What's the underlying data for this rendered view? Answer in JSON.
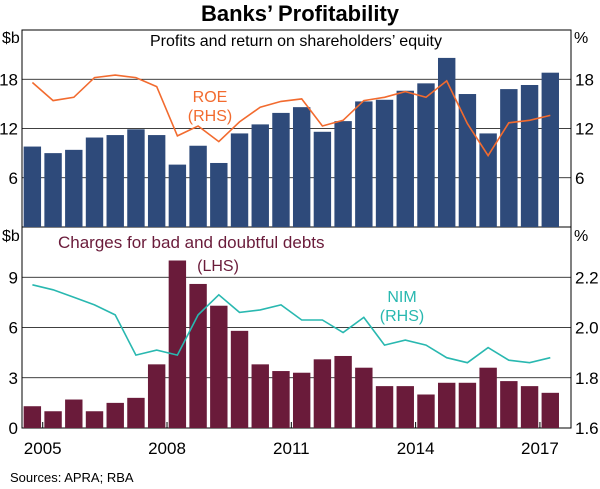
{
  "title": "Banks’ Profitability",
  "source": "Sources: APRA; RBA",
  "colors": {
    "bar_top": "#2e4a7a",
    "bar_bottom": "#6a1b3a",
    "roe": "#f26b2f",
    "nim": "#29b8b0",
    "grid": "#000000",
    "text": "#000000"
  },
  "chart_data": [
    {
      "type": "bar",
      "panel": "top",
      "title": "Profits and return on shareholders’ equity",
      "ylabel_left": "$b",
      "ylabel_right": "%",
      "ylim": [
        0,
        24
      ],
      "yticks": [
        6,
        12,
        18
      ],
      "x_start": 2004.75,
      "x_step": 0.5,
      "series": [
        {
          "name": "Profits",
          "axis": "left",
          "values": [
            9.8,
            9.0,
            9.4,
            10.9,
            11.2,
            11.9,
            11.2,
            7.6,
            9.9,
            7.8,
            11.4,
            12.5,
            13.9,
            14.6,
            11.6,
            12.9,
            15.3,
            15.5,
            16.6,
            17.5,
            20.6,
            16.2,
            11.4,
            16.8,
            17.3,
            18.8
          ]
        },
        {
          "name": "ROE",
          "label_line1": "ROE",
          "label_line2": "(RHS)",
          "axis": "right",
          "type": "line",
          "x": [
            2004.75,
            2005.25,
            2005.75,
            2006.25,
            2006.75,
            2007.25,
            2007.75,
            2008.25,
            2008.75,
            2009.25,
            2009.75,
            2010.25,
            2010.75,
            2011.25,
            2011.75,
            2012.25,
            2012.75,
            2013.25,
            2013.75,
            2014.25,
            2014.75,
            2015.25,
            2015.75,
            2016.25,
            2016.75,
            2017.25
          ],
          "values": [
            17.6,
            15.4,
            15.8,
            18.2,
            18.5,
            18.2,
            17.1,
            11.1,
            12.3,
            10.4,
            12.8,
            14.6,
            15.3,
            15.6,
            12.3,
            13.0,
            15.4,
            15.8,
            16.5,
            15.8,
            17.8,
            12.6,
            8.7,
            12.7,
            13.0,
            13.6
          ]
        }
      ]
    },
    {
      "type": "bar",
      "panel": "bottom",
      "title": "Charges for bad and doubtful debts",
      "bar_label": "(LHS)",
      "ylabel_left": "$b",
      "ylabel_right": "%",
      "ylim_left": [
        0,
        12
      ],
      "yticks_left": [
        3,
        6,
        9
      ],
      "ylim_right": [
        1.6,
        2.4
      ],
      "yticks_right": [
        "1.6",
        "1.8",
        "2.0",
        "2.2"
      ],
      "xticks": [
        "2005",
        "2008",
        "2011",
        "2014",
        "2017"
      ],
      "xtick_values": [
        2005,
        2008,
        2011,
        2014,
        2017
      ],
      "x_start": 2004.75,
      "x_step": 0.5,
      "series": [
        {
          "name": "Charges for bad and doubtful debts",
          "axis": "left",
          "values": [
            1.3,
            1.0,
            1.7,
            1.0,
            1.5,
            1.8,
            3.8,
            10.0,
            8.6,
            7.3,
            5.8,
            3.8,
            3.4,
            3.3,
            4.1,
            4.3,
            3.6,
            2.5,
            2.5,
            2.0,
            2.7,
            2.7,
            3.6,
            2.8,
            2.5,
            2.1
          ]
        },
        {
          "name": "NIM",
          "label_line1": "NIM",
          "label_line2": "(RHS)",
          "axis": "right",
          "type": "line",
          "x": [
            2004.75,
            2005.25,
            2005.75,
            2006.25,
            2006.75,
            2007.25,
            2007.75,
            2008.25,
            2008.75,
            2009.25,
            2009.75,
            2010.25,
            2010.75,
            2011.25,
            2011.75,
            2012.25,
            2012.75,
            2013.25,
            2013.75,
            2014.25,
            2014.75,
            2015.25,
            2015.75,
            2016.25,
            2016.75,
            2017.25
          ],
          "values": [
            2.17,
            2.15,
            2.12,
            2.09,
            2.05,
            1.89,
            1.91,
            1.89,
            2.05,
            2.13,
            2.06,
            2.07,
            2.09,
            2.03,
            2.03,
            1.98,
            2.04,
            1.93,
            1.95,
            1.93,
            1.88,
            1.86,
            1.92,
            1.87,
            1.86,
            1.88
          ]
        }
      ]
    }
  ]
}
